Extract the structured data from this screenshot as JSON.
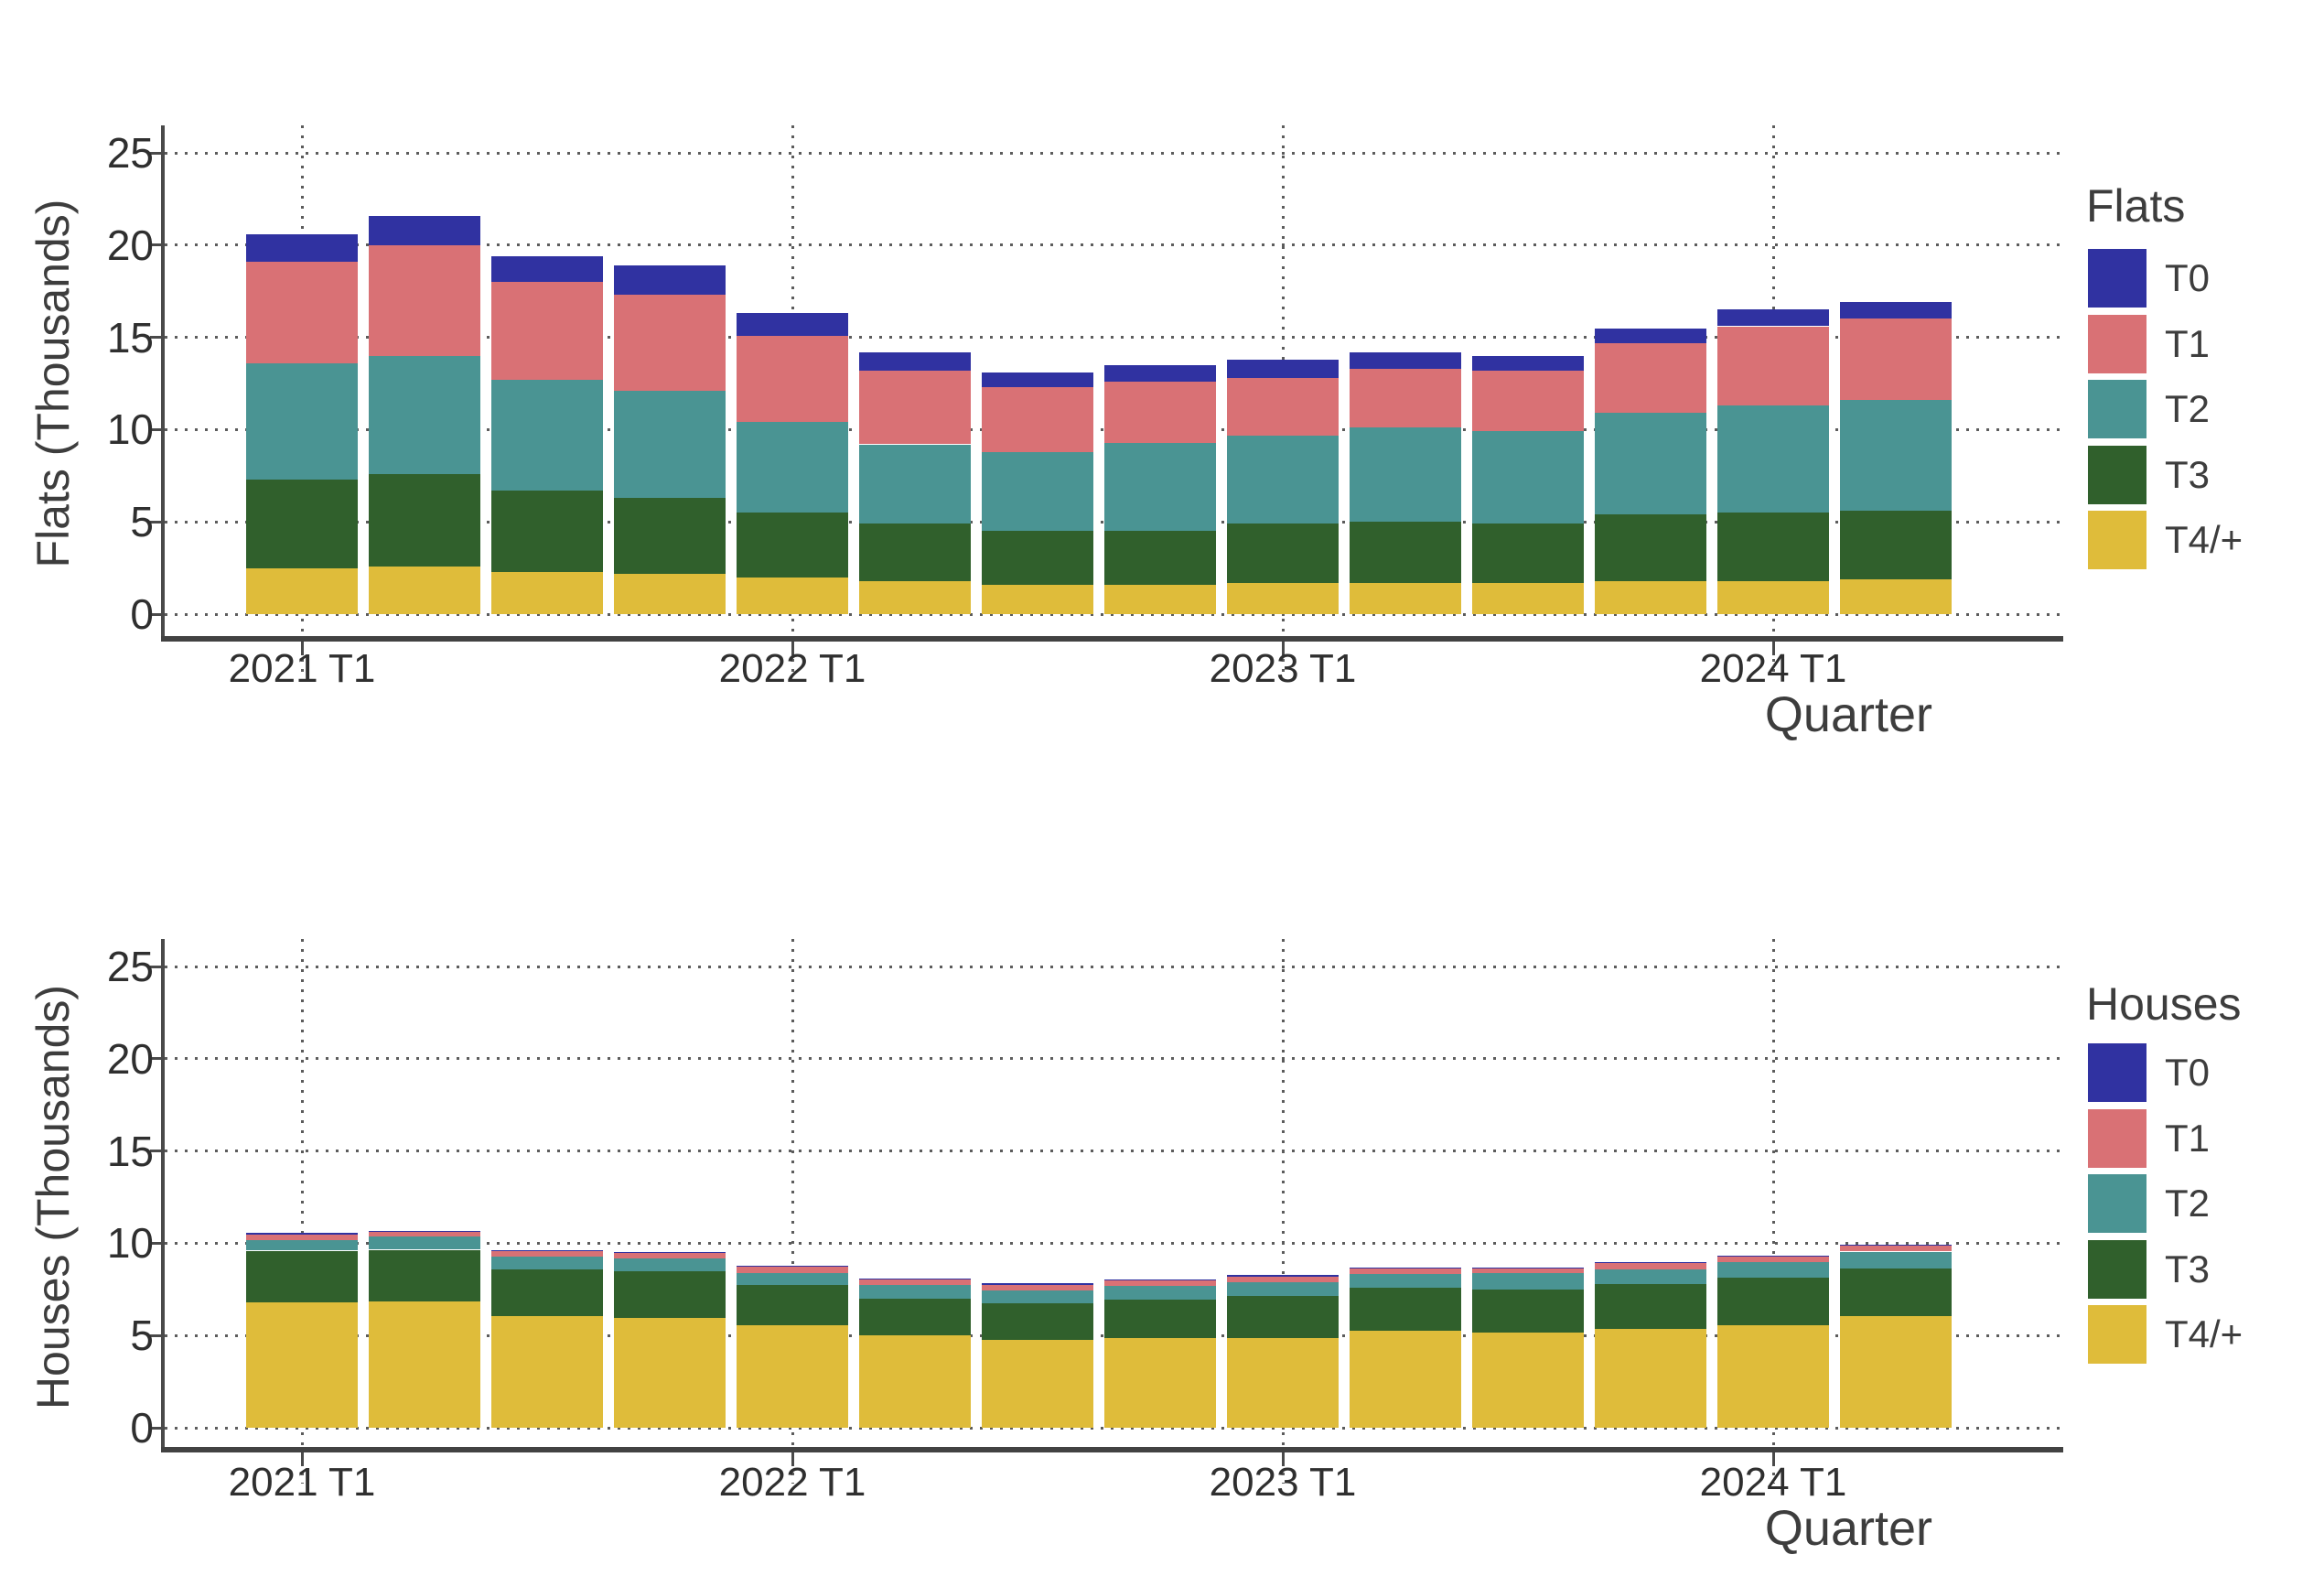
{
  "colors": {
    "T0": "#3032a1",
    "T1": "#d97175",
    "T2": "#4a9493",
    "T3": "#30602c",
    "T4/+": "#dfbc3a",
    "text": "#3a3a3a",
    "grid": "#5c5c5c",
    "axis": "#424242"
  },
  "chart_data": [
    {
      "type": "bar",
      "stacked": true,
      "stack_order": "bottom-to-top",
      "ylabel": "Flats (Thousands)",
      "xlabel": "Quarter",
      "legend_title": "Flats",
      "legend_order_top_to_bottom": [
        "T0",
        "T1",
        "T2",
        "T3",
        "T4/+"
      ],
      "ylim": [
        0,
        25
      ],
      "yticks": [
        0,
        5,
        10,
        15,
        20,
        25
      ],
      "grid": "dotted",
      "legend_position": "right",
      "categories": [
        "2021 T1",
        "2021 T2",
        "2021 T3",
        "2021 T4",
        "2022 T1",
        "2022 T2",
        "2022 T3",
        "2022 T4",
        "2023 T1",
        "2023 T2",
        "2023 T3",
        "2023 T4",
        "2024 T1",
        "2024 T2"
      ],
      "x_tick_labels_shown": [
        "2021 T1",
        "2022 T1",
        "2023 T1",
        "2024 T1"
      ],
      "x_tick_indices": [
        0,
        4,
        8,
        12
      ],
      "series": [
        {
          "name": "T4/+",
          "values": [
            2.5,
            2.6,
            2.3,
            2.2,
            2.0,
            1.8,
            1.6,
            1.6,
            1.7,
            1.7,
            1.7,
            1.8,
            1.8,
            1.9
          ]
        },
        {
          "name": "T3",
          "values": [
            4.8,
            5.0,
            4.4,
            4.1,
            3.5,
            3.1,
            2.9,
            2.9,
            3.2,
            3.3,
            3.2,
            3.6,
            3.7,
            3.7
          ]
        },
        {
          "name": "T2",
          "values": [
            6.3,
            6.4,
            6.0,
            5.8,
            4.9,
            4.3,
            4.3,
            4.8,
            4.8,
            5.1,
            5.0,
            5.5,
            5.8,
            6.0
          ]
        },
        {
          "name": "T1",
          "values": [
            5.5,
            6.0,
            5.3,
            5.2,
            4.7,
            4.0,
            3.5,
            3.3,
            3.1,
            3.2,
            3.3,
            3.8,
            4.3,
            4.4
          ]
        },
        {
          "name": "T0",
          "values": [
            1.5,
            1.6,
            1.4,
            1.6,
            1.2,
            1.0,
            0.8,
            0.9,
            1.0,
            0.9,
            0.8,
            0.8,
            0.9,
            0.9
          ]
        }
      ],
      "totals": [
        20.6,
        21.6,
        19.4,
        18.9,
        16.3,
        14.2,
        13.1,
        13.5,
        13.8,
        14.2,
        14.0,
        15.5,
        16.5,
        16.9
      ]
    },
    {
      "type": "bar",
      "stacked": true,
      "stack_order": "bottom-to-top",
      "ylabel": "Houses (Thousands)",
      "xlabel": "Quarter",
      "legend_title": "Houses",
      "legend_order_top_to_bottom": [
        "T0",
        "T1",
        "T2",
        "T3",
        "T4/+"
      ],
      "ylim": [
        0,
        25
      ],
      "yticks": [
        0,
        5,
        10,
        15,
        20,
        25
      ],
      "grid": "dotted",
      "legend_position": "right",
      "categories": [
        "2021 T1",
        "2021 T2",
        "2021 T3",
        "2021 T4",
        "2022 T1",
        "2022 T2",
        "2022 T3",
        "2022 T4",
        "2023 T1",
        "2023 T2",
        "2023 T3",
        "2023 T4",
        "2024 T1",
        "2024 T2"
      ],
      "x_tick_labels_shown": [
        "2021 T1",
        "2022 T1",
        "2023 T1",
        "2024 T1"
      ],
      "x_tick_indices": [
        0,
        4,
        8,
        12
      ],
      "series": [
        {
          "name": "T4/+",
          "values": [
            6.8,
            6.85,
            6.05,
            5.95,
            5.55,
            5.0,
            4.75,
            4.85,
            4.85,
            5.25,
            5.15,
            5.35,
            5.55,
            6.05
          ]
        },
        {
          "name": "T3",
          "values": [
            2.8,
            2.8,
            2.55,
            2.55,
            2.2,
            2.0,
            2.0,
            2.1,
            2.3,
            2.35,
            2.35,
            2.45,
            2.6,
            2.6
          ]
        },
        {
          "name": "T2",
          "values": [
            0.55,
            0.7,
            0.7,
            0.7,
            0.65,
            0.75,
            0.7,
            0.75,
            0.75,
            0.75,
            0.9,
            0.8,
            0.85,
            0.9
          ]
        },
        {
          "name": "T1",
          "values": [
            0.3,
            0.25,
            0.3,
            0.3,
            0.35,
            0.3,
            0.3,
            0.3,
            0.3,
            0.3,
            0.25,
            0.35,
            0.3,
            0.3
          ]
        },
        {
          "name": "T0",
          "values": [
            0.1,
            0.05,
            0.05,
            0.05,
            0.05,
            0.05,
            0.1,
            0.05,
            0.1,
            0.05,
            0.05,
            0.05,
            0.05,
            0.05
          ]
        }
      ],
      "totals": [
        10.55,
        10.65,
        9.65,
        9.55,
        8.8,
        8.1,
        7.85,
        8.05,
        8.3,
        8.7,
        8.7,
        9.0,
        9.35,
        9.9
      ]
    }
  ]
}
